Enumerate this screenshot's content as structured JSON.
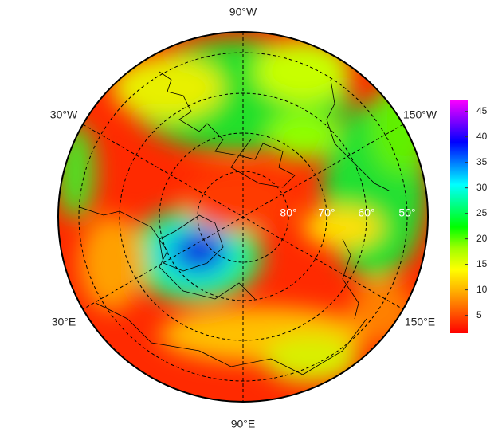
{
  "map": {
    "longitude_labels": {
      "top": "90°W",
      "upper_left": "30°W",
      "upper_right": "150°W",
      "lower_left": "30°E",
      "lower_right": "150°E",
      "bottom": "90°E"
    },
    "latitude_labels": [
      "80°",
      "70°",
      "60°",
      "50°"
    ],
    "colorbar": {
      "lim": [
        1.5,
        47.3
      ],
      "ticks": [
        5,
        10,
        15,
        20,
        25,
        30,
        35,
        40,
        45
      ],
      "colors": [
        "#ff0000",
        "#ff5a00",
        "#ffb000",
        "#ffff00",
        "#a0ff00",
        "#00ff00",
        "#00ff80",
        "#00ffff",
        "#0080ff",
        "#0000ff",
        "#8000ff",
        "#ff00ff"
      ]
    }
  }
}
